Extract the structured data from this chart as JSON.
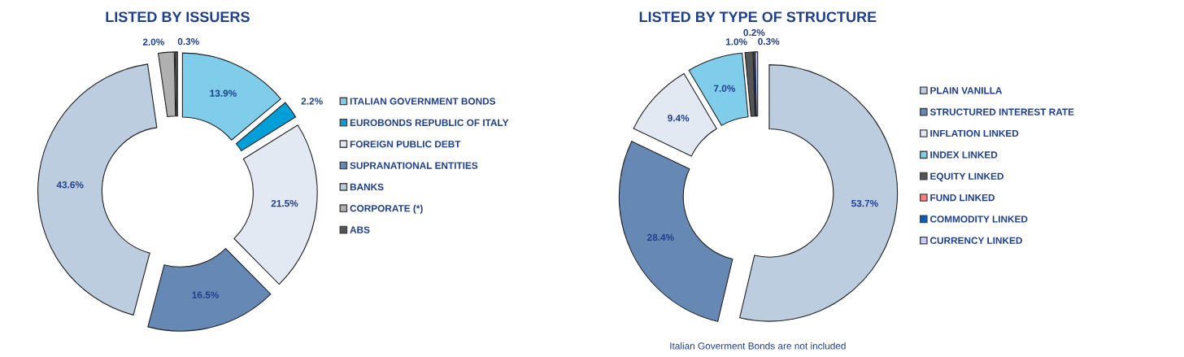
{
  "chart_data": [
    {
      "type": "donut",
      "title": "LISTED BY ISSUERS",
      "categories": [
        "ITALIAN GOVERNMENT BONDS",
        "EUROBONDS REPUBLIC OF ITALY",
        "FOREIGN PUBLIC DEBT",
        "SUPRANATIONAL ENTITIES",
        "BANKS",
        "CORPORATE (*)",
        "ABS"
      ],
      "values": [
        13.9,
        2.2,
        21.5,
        16.5,
        43.6,
        2.0,
        0.3
      ],
      "value_labels": [
        "13.9%",
        "2.2%",
        "21.5%",
        "16.5%",
        "43.6%",
        "2.0%",
        "0.3%"
      ],
      "colors": [
        "#7fcdea",
        "#009fd8",
        "#e2e9f3",
        "#6688b4",
        "#bccde0",
        "#b0b0b0",
        "#555555"
      ],
      "legend": "right"
    },
    {
      "type": "donut",
      "title": "LISTED BY TYPE OF STRUCTURE",
      "categories": [
        "PLAIN VANILLA",
        "STRUCTURED INTEREST RATE",
        "INFLATION LINKED",
        "INDEX LINKED",
        "EQUITY LINKED",
        "FUND LINKED",
        "COMMODITY LINKED",
        "CURRENCY LINKED"
      ],
      "values": [
        53.7,
        28.4,
        9.4,
        7.0,
        1.0,
        null,
        0.2,
        0.3
      ],
      "value_labels": [
        "53.7%",
        "28.4%",
        "9.4%",
        "7.0%",
        "1.0%",
        null,
        "0.2%",
        "0.3%"
      ],
      "colors": [
        "#bccde0",
        "#6688b4",
        "#e2e9f3",
        "#7fcdea",
        "#555555",
        "#ff8080",
        "#0060c0",
        "#ccccff"
      ],
      "legend": "right",
      "annotations": [
        "Italian Goverment Bonds are not included"
      ]
    }
  ]
}
